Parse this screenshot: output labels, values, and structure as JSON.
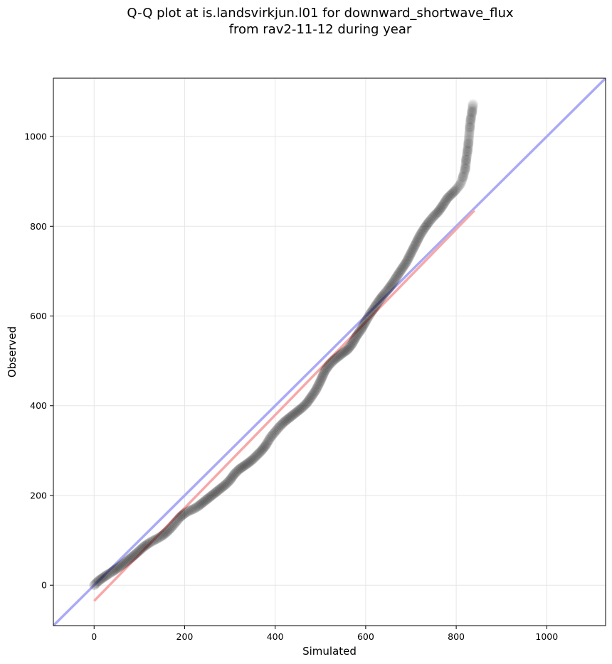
{
  "title_line1": "Q-Q plot at is.landsvirkjun.l01 for downward_shortwave_flux",
  "title_line2": "from rav2-11-12 during year",
  "chart_data": {
    "type": "scatter",
    "xlabel": "Simulated",
    "ylabel": "Observed",
    "xlim": [
      -90,
      1130
    ],
    "ylim": [
      -90,
      1130
    ],
    "xticks": [
      0,
      200,
      400,
      600,
      800,
      1000
    ],
    "yticks": [
      0,
      200,
      400,
      600,
      800,
      1000
    ],
    "grid": true,
    "colors": {
      "points": "#000000",
      "identity_line": "#aaaaf5",
      "fit_line": "#f7a8a8",
      "grid": "#e6e6e6"
    },
    "identity_line": {
      "x": [
        -90,
        1130
      ],
      "y": [
        -90,
        1130
      ]
    },
    "fit_line": {
      "x": [
        0,
        840
      ],
      "y": [
        -35,
        835
      ]
    },
    "qq_points": [
      [
        0,
        0
      ],
      [
        5,
        5
      ],
      [
        10,
        10
      ],
      [
        20,
        17
      ],
      [
        30,
        24
      ],
      [
        40,
        30
      ],
      [
        50,
        37
      ],
      [
        60,
        44
      ],
      [
        70,
        52
      ],
      [
        80,
        60
      ],
      [
        90,
        68
      ],
      [
        100,
        77
      ],
      [
        110,
        86
      ],
      [
        120,
        93
      ],
      [
        130,
        99
      ],
      [
        140,
        104
      ],
      [
        150,
        110
      ],
      [
        160,
        118
      ],
      [
        170,
        128
      ],
      [
        180,
        140
      ],
      [
        190,
        152
      ],
      [
        200,
        160
      ],
      [
        210,
        166
      ],
      [
        220,
        170
      ],
      [
        230,
        176
      ],
      [
        240,
        184
      ],
      [
        250,
        192
      ],
      [
        260,
        200
      ],
      [
        270,
        208
      ],
      [
        280,
        216
      ],
      [
        290,
        224
      ],
      [
        300,
        234
      ],
      [
        310,
        248
      ],
      [
        320,
        258
      ],
      [
        330,
        265
      ],
      [
        340,
        272
      ],
      [
        350,
        280
      ],
      [
        360,
        290
      ],
      [
        370,
        300
      ],
      [
        380,
        313
      ],
      [
        390,
        330
      ],
      [
        400,
        342
      ],
      [
        410,
        354
      ],
      [
        420,
        364
      ],
      [
        430,
        372
      ],
      [
        440,
        380
      ],
      [
        450,
        388
      ],
      [
        460,
        396
      ],
      [
        470,
        406
      ],
      [
        480,
        420
      ],
      [
        490,
        435
      ],
      [
        500,
        455
      ],
      [
        510,
        478
      ],
      [
        520,
        492
      ],
      [
        530,
        502
      ],
      [
        540,
        510
      ],
      [
        550,
        518
      ],
      [
        560,
        525
      ],
      [
        570,
        538
      ],
      [
        580,
        556
      ],
      [
        590,
        570
      ],
      [
        600,
        588
      ],
      [
        610,
        605
      ],
      [
        620,
        620
      ],
      [
        630,
        635
      ],
      [
        640,
        648
      ],
      [
        650,
        660
      ],
      [
        660,
        674
      ],
      [
        670,
        690
      ],
      [
        680,
        705
      ],
      [
        690,
        720
      ],
      [
        700,
        740
      ],
      [
        710,
        760
      ],
      [
        720,
        780
      ],
      [
        730,
        796
      ],
      [
        740,
        810
      ],
      [
        750,
        822
      ],
      [
        760,
        832
      ],
      [
        770,
        846
      ],
      [
        780,
        862
      ],
      [
        790,
        872
      ],
      [
        800,
        882
      ],
      [
        810,
        895
      ],
      [
        815,
        910
      ],
      [
        820,
        928
      ],
      [
        822,
        948
      ],
      [
        825,
        968
      ],
      [
        827,
        985
      ],
      [
        830,
        1020
      ],
      [
        832,
        1038
      ],
      [
        835,
        1055
      ],
      [
        837,
        1072
      ]
    ]
  }
}
